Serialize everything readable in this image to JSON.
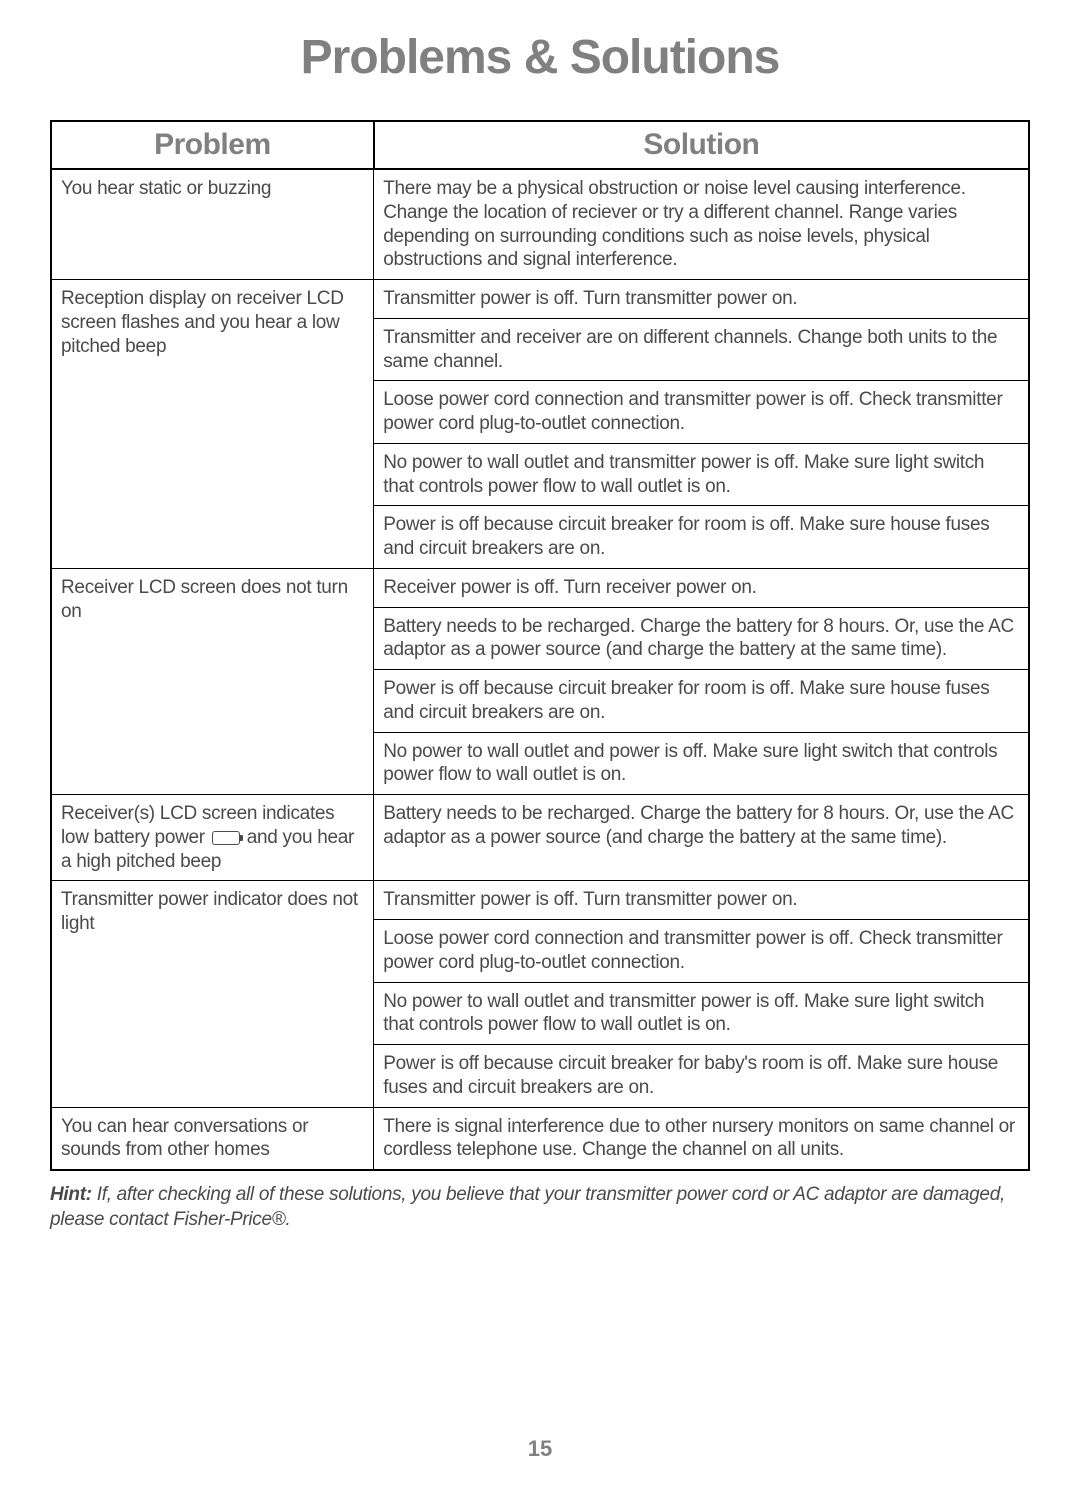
{
  "title": "Problems & Solutions",
  "headers": {
    "problem": "Problem",
    "solution": "Solution"
  },
  "rows": [
    {
      "problem": "You hear static or buzzing",
      "solutions": [
        "There may be a physical obstruction or noise level causing interference. Change the location of reciever or try a different channel. Range varies depending on surrounding conditions such as noise levels, physical obstructions and signal interference."
      ]
    },
    {
      "problem": "Reception display on receiver LCD screen flashes and you hear a low pitched beep",
      "solutions": [
        "Transmitter power is off. Turn transmitter power on.",
        "Transmitter and receiver are on different channels. Change both units to the same channel.",
        "Loose power cord connection and transmitter power is off. Check transmitter power cord plug-to-outlet connection.",
        "No power to wall outlet and transmitter power is off. Make sure light switch that controls power flow to wall outlet is on.",
        "Power is off because circuit breaker for room is off. Make sure house fuses and circuit breakers are on."
      ]
    },
    {
      "problem": "Receiver LCD screen does not turn on",
      "solutions": [
        "Receiver power is off. Turn receiver power on.",
        "Battery needs to be recharged. Charge the battery for 8 hours. Or, use the AC adaptor as a power source (and charge the battery at the same time).",
        "Power is off because circuit breaker for room is off. Make sure house fuses and circuit breakers are on.",
        "No power to wall outlet and power is off. Make sure light switch that controls power flow to wall outlet is on."
      ]
    },
    {
      "problem_pre": "Receiver(s) LCD screen indicates low battery power ",
      "problem_post": " and you hear a high pitched beep",
      "has_battery_icon": true,
      "solutions": [
        "Battery needs to be recharged. Charge the battery for 8 hours. Or, use the AC adaptor as a power source (and charge the battery at the same time)."
      ]
    },
    {
      "problem": "Transmitter power indicator does not light",
      "solutions": [
        "Transmitter power is off. Turn transmitter power on.",
        "Loose power cord connection and transmitter power is off. Check transmitter power cord plug-to-outlet connection.",
        "No power to wall outlet and transmitter power is off. Make sure light switch that controls power flow to wall outlet is on.",
        "Power is off because circuit breaker for baby's room is off. Make sure house fuses and circuit breakers are on."
      ]
    },
    {
      "problem": "You can hear conversations or sounds from other homes",
      "solutions": [
        "There is signal interference due to other nursery monitors on same channel or cordless telephone use. Change the channel on all units."
      ]
    }
  ],
  "hint_label": "Hint:",
  "hint_text": " If, after checking all of these solutions, you believe that your transmitter power cord or AC adaptor are damaged, please contact Fisher-Price®.",
  "page_number": "15"
}
